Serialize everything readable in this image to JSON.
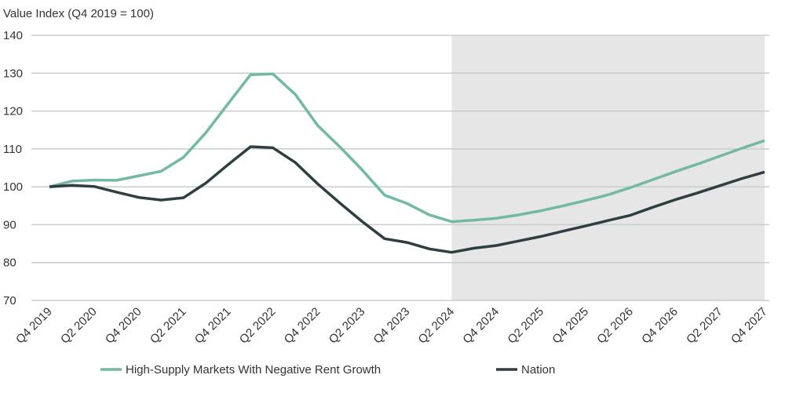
{
  "chart_data": {
    "type": "line",
    "ylabel": "Value Index (Q4 2019 = 100)",
    "ylim": [
      70,
      140
    ],
    "yticks": [
      70,
      80,
      90,
      100,
      110,
      120,
      130,
      140
    ],
    "grid": true,
    "legend_placement": "bottom",
    "x": [
      "Q4 2019",
      "Q1 2020",
      "Q2 2020",
      "Q3 2020",
      "Q4 2020",
      "Q1 2021",
      "Q2 2021",
      "Q3 2021",
      "Q4 2021",
      "Q1 2022",
      "Q2 2022",
      "Q3 2022",
      "Q4 2022",
      "Q1 2023",
      "Q2 2023",
      "Q3 2023",
      "Q4 2023",
      "Q1 2024",
      "Q2 2024",
      "Q3 2024",
      "Q4 2024",
      "Q1 2025",
      "Q2 2025",
      "Q3 2025",
      "Q4 2025",
      "Q1 2026",
      "Q2 2026",
      "Q3 2026",
      "Q4 2026",
      "Q1 2027",
      "Q2 2027",
      "Q3 2027",
      "Q4 2027"
    ],
    "xtick_labels": [
      "Q4 2019",
      "Q2 2020",
      "Q4 2020",
      "Q2 2021",
      "Q4 2021",
      "Q2 2022",
      "Q4 2022",
      "Q2 2023",
      "Q4 2023",
      "Q2 2024",
      "Q4 2024",
      "Q2 2025",
      "Q4 2025",
      "Q2 2026",
      "Q4 2026",
      "Q2 2027",
      "Q4 2027"
    ],
    "shaded_region": {
      "from": "Q2 2024",
      "to": "Q4 2027",
      "color": "#e6e6e6"
    },
    "series": [
      {
        "name": "High-Supply Markets With Negative Rent Growth",
        "color": "#72b9a3",
        "values": [
          100,
          101.5,
          101.8,
          101.7,
          102.9,
          104.1,
          107.8,
          114.3,
          122,
          129.6,
          129.8,
          124.4,
          116.2,
          110.5,
          104.4,
          97.8,
          95.6,
          92.6,
          90.8,
          91.2,
          91.7,
          92.6,
          93.7,
          95,
          96.4,
          97.9,
          99.8,
          101.9,
          104,
          106,
          108.1,
          110.2,
          112.2
        ]
      },
      {
        "name": "Nation",
        "color": "#2f3f41",
        "values": [
          100,
          100.4,
          100.1,
          98.6,
          97.2,
          96.5,
          97.1,
          101,
          105.9,
          110.6,
          110.3,
          106.4,
          100.8,
          95.7,
          90.8,
          86.3,
          85.3,
          83.6,
          82.7,
          83.8,
          84.5,
          85.7,
          86.9,
          88.3,
          89.7,
          91.1,
          92.5,
          94.6,
          96.6,
          98.4,
          100.3,
          102.2,
          103.9
        ]
      }
    ]
  }
}
